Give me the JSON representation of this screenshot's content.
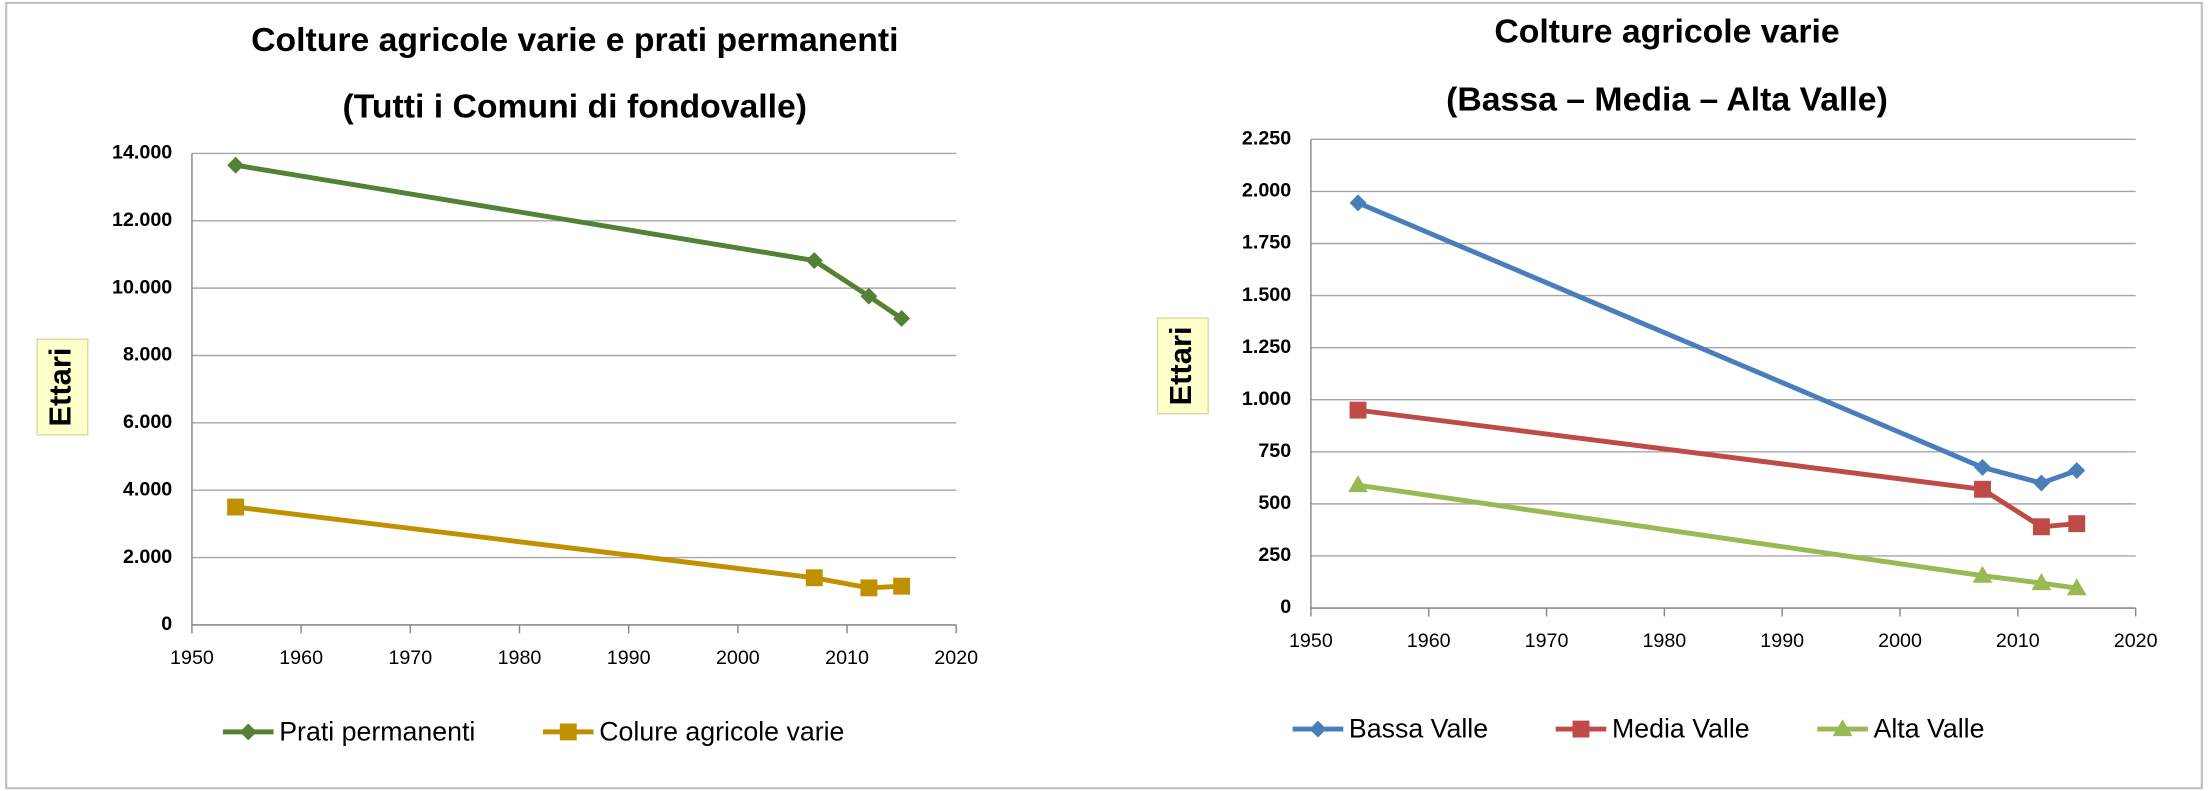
{
  "chart_data": [
    {
      "type": "line",
      "title": "Colture agricole varie e prati permanenti",
      "subtitle": "(Tutti i Comuni di fondovalle)",
      "y_label": "Ettari",
      "x": [
        1954,
        2007,
        2012,
        2015
      ],
      "series": [
        {
          "name": "Prati permanenti",
          "color": "#548235",
          "marker": "diamond",
          "values": [
            13650,
            10820,
            9760,
            9100
          ]
        },
        {
          "name": "Colure agricole varie",
          "color": "#bf9000",
          "marker": "square",
          "values": [
            3500,
            1400,
            1100,
            1150
          ]
        }
      ],
      "xlim": [
        1950,
        2020
      ],
      "xticks": [
        1950,
        1960,
        1970,
        1980,
        1990,
        2000,
        2010,
        2020
      ],
      "ylim": [
        0,
        14000
      ],
      "yticks": [
        0,
        {
          "value": 2000,
          "label": "2.000"
        },
        {
          "value": 4000,
          "label": "4.000"
        },
        {
          "value": 6000,
          "label": "6.000"
        },
        {
          "value": 8000,
          "label": "8.000"
        },
        {
          "value": 10000,
          "label": "10.000"
        },
        {
          "value": 12000,
          "label": "12.000"
        },
        {
          "value": 14000,
          "label": "14.000"
        }
      ],
      "grid": true,
      "legend": "bottom"
    },
    {
      "type": "line",
      "title": "Colture agricole varie",
      "subtitle": "(Bassa – Media – Alta Valle)",
      "y_label": "Ettari",
      "x": [
        1954,
        2007,
        2012,
        2015
      ],
      "series": [
        {
          "name": "Bassa Valle",
          "color": "#4a7ebb",
          "marker": "diamond",
          "values": [
            1945,
            675,
            600,
            660
          ]
        },
        {
          "name": "Media Valle",
          "color": "#be4b48",
          "marker": "square",
          "values": [
            950,
            570,
            390,
            405
          ]
        },
        {
          "name": "Alta Valle",
          "color": "#98b954",
          "marker": "triangle",
          "values": [
            590,
            155,
            120,
            95
          ]
        }
      ],
      "xlim": [
        1950,
        2020
      ],
      "xticks": [
        1950,
        1960,
        1970,
        1980,
        1990,
        2000,
        2010,
        2020
      ],
      "ylim": [
        0,
        2250
      ],
      "yticks": [
        0,
        250,
        500,
        750,
        {
          "value": 1000,
          "label": "1.000"
        },
        {
          "value": 1250,
          "label": "1.250"
        },
        {
          "value": 1500,
          "label": "1.500"
        },
        {
          "value": 1750,
          "label": "1.750"
        },
        {
          "value": 2000,
          "label": "2.000"
        },
        {
          "value": 2250,
          "label": "2.250"
        }
      ],
      "grid": true,
      "legend": "bottom"
    }
  ]
}
